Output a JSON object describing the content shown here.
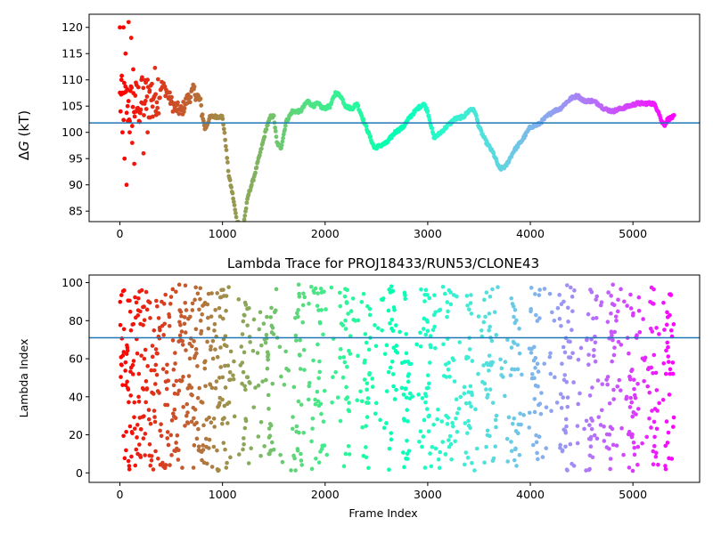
{
  "chart_data": [
    {
      "type": "scatter",
      "title": "",
      "xlabel": "",
      "ylabel": "ΔG (kT)",
      "ylabel_prefix": "Δ",
      "ylabel_var": "G",
      "ylabel_unit": " (kT)",
      "xlim": [
        -300,
        5650
      ],
      "ylim": [
        83,
        122.5
      ],
      "xticks": [
        0,
        1000,
        2000,
        3000,
        4000,
        5000
      ],
      "yticks": [
        85,
        90,
        95,
        100,
        105,
        110,
        115,
        120
      ],
      "hline": 101.8,
      "hline_color": "#1f77b4",
      "colormap": "rainbow",
      "x_max": 5400,
      "profile": [
        [
          0,
          106
        ],
        [
          100,
          105
        ],
        [
          200,
          105.5
        ],
        [
          300,
          107
        ],
        [
          400,
          109
        ],
        [
          450,
          108
        ],
        [
          520,
          105
        ],
        [
          600,
          104
        ],
        [
          650,
          106
        ],
        [
          720,
          108
        ],
        [
          780,
          106
        ],
        [
          830,
          100.5
        ],
        [
          880,
          103
        ],
        [
          1000,
          103
        ],
        [
          1030,
          98
        ],
        [
          1060,
          92
        ],
        [
          1100,
          88
        ],
        [
          1140,
          83
        ],
        [
          1200,
          82
        ],
        [
          1250,
          88
        ],
        [
          1300,
          91
        ],
        [
          1380,
          97
        ],
        [
          1430,
          101
        ],
        [
          1470,
          103
        ],
        [
          1500,
          103
        ],
        [
          1530,
          98
        ],
        [
          1570,
          97
        ],
        [
          1620,
          102
        ],
        [
          1680,
          104
        ],
        [
          1760,
          104
        ],
        [
          1830,
          106
        ],
        [
          1880,
          105
        ],
        [
          1930,
          105.5
        ],
        [
          1980,
          104.5
        ],
        [
          2050,
          105
        ],
        [
          2100,
          107.5
        ],
        [
          2150,
          107
        ],
        [
          2200,
          105
        ],
        [
          2260,
          104.5
        ],
        [
          2310,
          105.5
        ],
        [
          2360,
          103
        ],
        [
          2420,
          100
        ],
        [
          2480,
          97
        ],
        [
          2540,
          97.5
        ],
        [
          2600,
          98
        ],
        [
          2680,
          100
        ],
        [
          2760,
          101
        ],
        [
          2830,
          103
        ],
        [
          2900,
          104.5
        ],
        [
          2960,
          105.5
        ],
        [
          3000,
          104
        ],
        [
          3060,
          99
        ],
        [
          3100,
          99.5
        ],
        [
          3180,
          101
        ],
        [
          3260,
          102.5
        ],
        [
          3350,
          103
        ],
        [
          3420,
          104.5
        ],
        [
          3460,
          104
        ],
        [
          3500,
          101
        ],
        [
          3560,
          98.5
        ],
        [
          3640,
          96
        ],
        [
          3700,
          93
        ],
        [
          3760,
          93.5
        ],
        [
          3840,
          96.5
        ],
        [
          3920,
          98.5
        ],
        [
          4000,
          101
        ],
        [
          4080,
          101.5
        ],
        [
          4160,
          103
        ],
        [
          4220,
          104
        ],
        [
          4290,
          104.5
        ],
        [
          4340,
          105.5
        ],
        [
          4400,
          106.5
        ],
        [
          4460,
          107
        ],
        [
          4520,
          106
        ],
        [
          4600,
          106
        ],
        [
          4660,
          105.5
        ],
        [
          4720,
          104.5
        ],
        [
          4800,
          104
        ],
        [
          4880,
          104.5
        ],
        [
          4960,
          105
        ],
        [
          5040,
          105.5
        ],
        [
          5120,
          105.5
        ],
        [
          5200,
          105.5
        ],
        [
          5250,
          104
        ],
        [
          5280,
          102
        ],
        [
          5310,
          101.5
        ],
        [
          5340,
          102.5
        ],
        [
          5400,
          103
        ]
      ],
      "early_scatter": [
        [
          0,
          120
        ],
        [
          15,
          110
        ],
        [
          25,
          100
        ],
        [
          35,
          120
        ],
        [
          45,
          95
        ],
        [
          55,
          115
        ],
        [
          65,
          90
        ],
        [
          75,
          105
        ],
        [
          85,
          121
        ],
        [
          95,
          100
        ],
        [
          110,
          118
        ],
        [
          120,
          98
        ],
        [
          130,
          112
        ],
        [
          140,
          94
        ],
        [
          150,
          107
        ],
        [
          170,
          104
        ],
        [
          190,
          102
        ],
        [
          210,
          110
        ],
        [
          230,
          96
        ],
        [
          250,
          106
        ],
        [
          270,
          100
        ],
        [
          290,
          108
        ],
        [
          320,
          103
        ],
        [
          350,
          104
        ]
      ]
    },
    {
      "type": "scatter",
      "title": "Lambda Trace for PROJ18433/RUN53/CLONE43",
      "xlabel": "Frame Index",
      "ylabel": "Lambda Index",
      "xlim": [
        -300,
        5650
      ],
      "ylim": [
        -5,
        104
      ],
      "xticks": [
        0,
        1000,
        2000,
        3000,
        4000,
        5000
      ],
      "yticks": [
        0,
        20,
        40,
        60,
        80,
        100
      ],
      "hline": 71,
      "hline_color": "#1f77b4",
      "colormap": "rainbow",
      "x_max": 5400,
      "y_range": [
        1,
        99
      ],
      "band_centers": [
        1020,
        1220,
        1450,
        1750,
        1950,
        2200,
        2400,
        2650,
        2800,
        3000,
        3200,
        3400,
        3600,
        3850,
        4050,
        4350,
        4600,
        4800,
        5000,
        5200,
        5350
      ]
    }
  ]
}
